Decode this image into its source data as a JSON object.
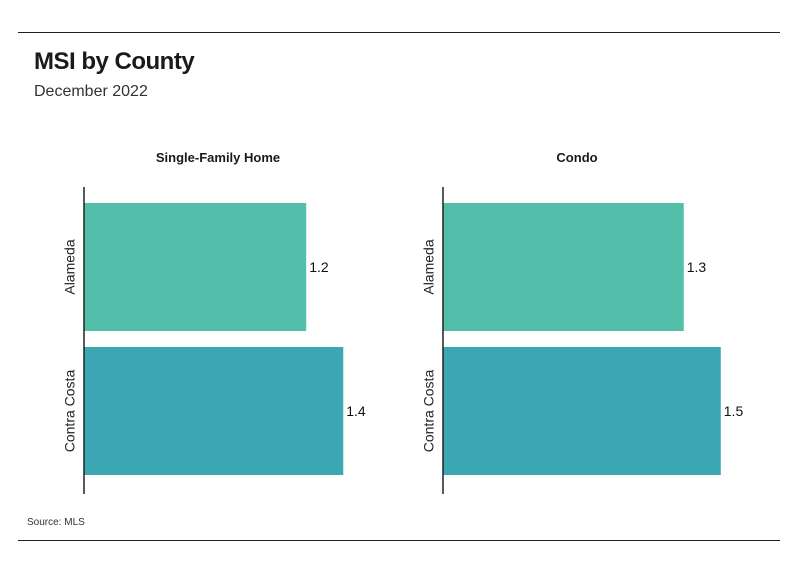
{
  "header": {
    "title": "MSI by County",
    "subtitle": "December 2022"
  },
  "footer": {
    "source": "Source:  MLS"
  },
  "colors": {
    "alameda": "#52bfaa",
    "contra_costa": "#3ba7b3",
    "axis": "#222222"
  },
  "chart_data": [
    {
      "type": "bar",
      "orientation": "horizontal",
      "title": "Single-Family Home",
      "categories": [
        "Alameda",
        "Contra Costa"
      ],
      "values": [
        1.2,
        1.4
      ],
      "xlim": [
        0,
        1.62
      ],
      "xlabel": "",
      "ylabel": "",
      "grid": false
    },
    {
      "type": "bar",
      "orientation": "horizontal",
      "title": "Condo",
      "categories": [
        "Alameda",
        "Contra Costa"
      ],
      "values": [
        1.3,
        1.5
      ],
      "xlim": [
        0,
        1.62
      ],
      "xlabel": "",
      "ylabel": "",
      "grid": false
    }
  ]
}
